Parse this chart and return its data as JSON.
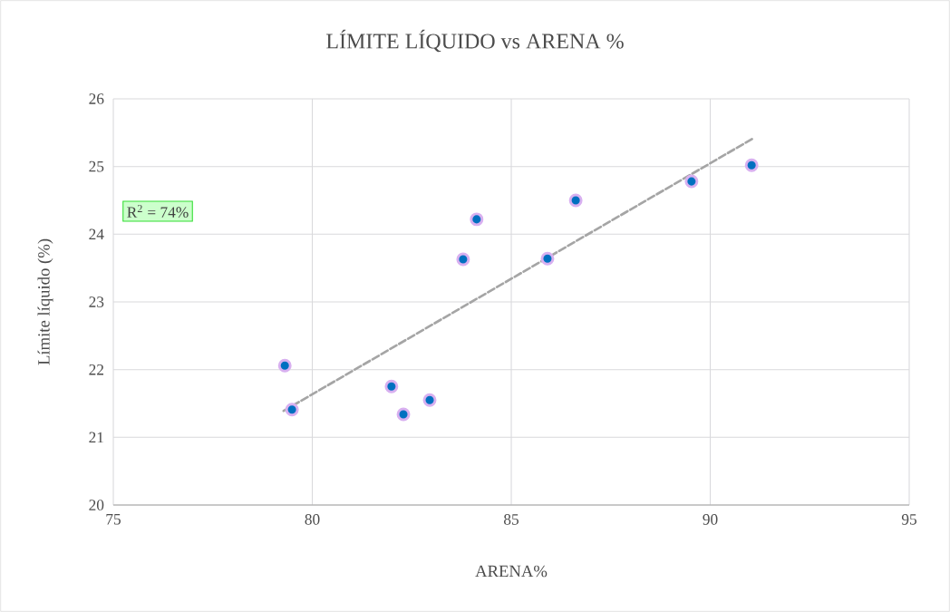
{
  "chart_data": {
    "type": "scatter",
    "title": "LÍMITE LÍQUIDO vs ARENA %",
    "xlabel": "ARENA%",
    "ylabel": "Límite líquido (%)",
    "xlim": [
      75,
      95
    ],
    "xticks": [
      75,
      80,
      85,
      90,
      95
    ],
    "ylim": [
      20,
      26
    ],
    "yticks": [
      20,
      21,
      22,
      23,
      24,
      25,
      26
    ],
    "grid": true,
    "marker": "circle",
    "annotations": [
      "R$^{2}$ = 74%"
    ],
    "series": [
      {
        "color": "#0070c0",
        "x": [
          79.31,
          79.49,
          81.99,
          82.29,
          82.95,
          83.79,
          84.13,
          85.91,
          86.62,
          89.53,
          91.04
        ],
        "values": [
          22.06,
          21.41,
          21.75,
          21.34,
          21.55,
          23.63,
          24.22,
          23.64,
          24.5,
          24.78,
          25.02
        ]
      },
      {
        "type": "line",
        "color": "#a5a5a5",
        "line_style": "dashed",
        "marker": "none",
        "x": [
          79.28,
          91.06
        ],
        "values": [
          21.39,
          25.41
        ]
      }
    ]
  }
}
